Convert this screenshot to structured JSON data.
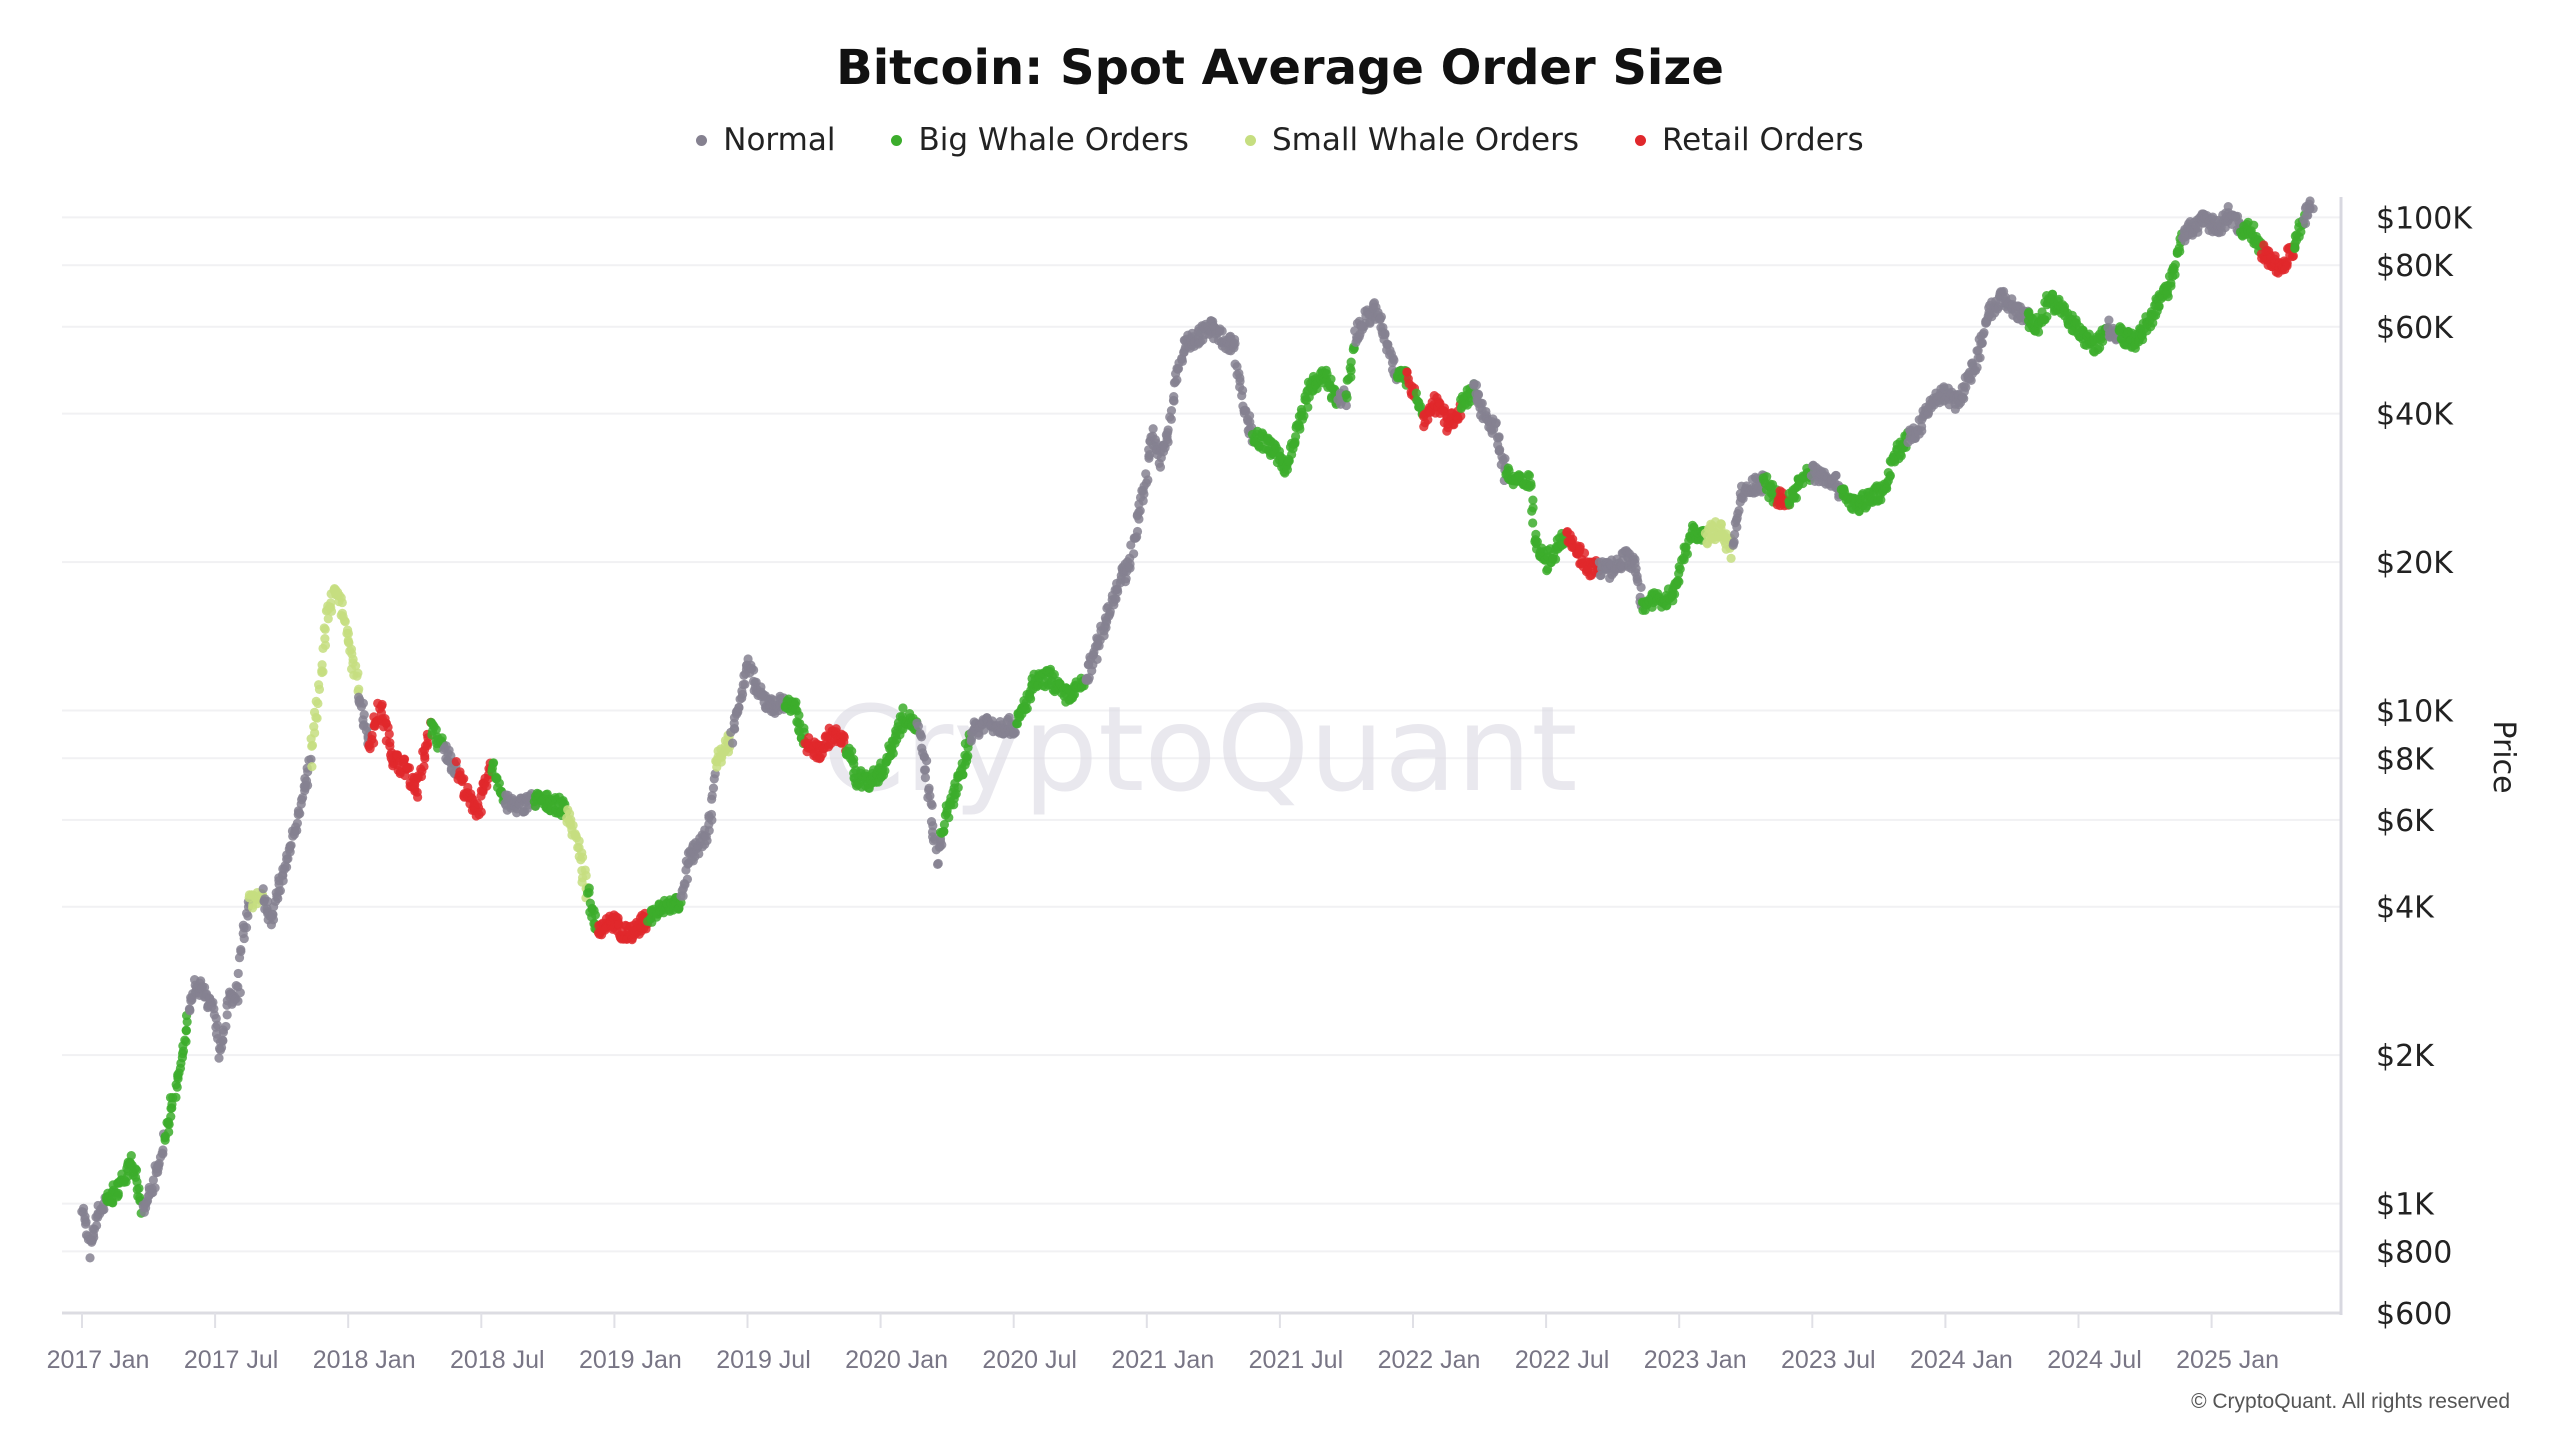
{
  "chart_data": {
    "type": "scatter",
    "title": "Bitcoin: Spot Average Order Size",
    "ylabel": "Price",
    "xlabel": "",
    "yscale": "log",
    "ylim": [
      600,
      110000
    ],
    "xlim": [
      2016.95,
      2025.48
    ],
    "grid": true,
    "legend_position": "top-center",
    "watermark": "CryptoQuant",
    "categories": {
      "n": {
        "name": "Normal",
        "color": "#858190"
      },
      "b": {
        "name": "Big Whale Orders",
        "color": "#3cad2c"
      },
      "s": {
        "name": "Small Whale Orders",
        "color": "#c6de80"
      },
      "r": {
        "name": "Retail Orders",
        "color": "#e0282c"
      }
    },
    "legend": [
      "Normal",
      "Big Whale Orders",
      "Small Whale Orders",
      "Retail Orders"
    ],
    "y_ticks": [
      {
        "value": 100000,
        "label": "$100K"
      },
      {
        "value": 80000,
        "label": "$80K"
      },
      {
        "value": 60000,
        "label": "$60K"
      },
      {
        "value": 40000,
        "label": "$40K"
      },
      {
        "value": 20000,
        "label": "$20K"
      },
      {
        "value": 10000,
        "label": "$10K"
      },
      {
        "value": 8000,
        "label": "$8K"
      },
      {
        "value": 6000,
        "label": "$6K"
      },
      {
        "value": 4000,
        "label": "$4K"
      },
      {
        "value": 2000,
        "label": "$2K"
      },
      {
        "value": 1000,
        "label": "$1K"
      },
      {
        "value": 800,
        "label": "$800"
      },
      {
        "value": 600,
        "label": "$600"
      }
    ],
    "x_ticks": [
      {
        "value": 2017.0,
        "label": "2017 Jan"
      },
      {
        "value": 2017.5,
        "label": "2017 Jul"
      },
      {
        "value": 2018.0,
        "label": "2018 Jan"
      },
      {
        "value": 2018.5,
        "label": "2018 Jul"
      },
      {
        "value": 2019.0,
        "label": "2019 Jan"
      },
      {
        "value": 2019.5,
        "label": "2019 Jul"
      },
      {
        "value": 2020.0,
        "label": "2020 Jan"
      },
      {
        "value": 2020.5,
        "label": "2020 Jul"
      },
      {
        "value": 2021.0,
        "label": "2021 Jan"
      },
      {
        "value": 2021.5,
        "label": "2021 Jul"
      },
      {
        "value": 2022.0,
        "label": "2022 Jan"
      },
      {
        "value": 2022.5,
        "label": "2022 Jul"
      },
      {
        "value": 2023.0,
        "label": "2023 Jan"
      },
      {
        "value": 2023.5,
        "label": "2023 Jul"
      },
      {
        "value": 2024.0,
        "label": "2024 Jan"
      },
      {
        "value": 2024.5,
        "label": "2024 Jul"
      },
      {
        "value": 2025.0,
        "label": "2025 Jan"
      }
    ],
    "points": [
      [
        2017.0,
        1000,
        "n"
      ],
      [
        2017.03,
        800,
        "n"
      ],
      [
        2017.06,
        950,
        "n"
      ],
      [
        2017.09,
        1000,
        "b"
      ],
      [
        2017.15,
        1100,
        "b"
      ],
      [
        2017.18,
        1250,
        "b"
      ],
      [
        2017.23,
        950,
        "n"
      ],
      [
        2017.28,
        1150,
        "n"
      ],
      [
        2017.31,
        1350,
        "b"
      ],
      [
        2017.37,
        1900,
        "b"
      ],
      [
        2017.4,
        2400,
        "n"
      ],
      [
        2017.43,
        2800,
        "n"
      ],
      [
        2017.49,
        2500,
        "n"
      ],
      [
        2017.52,
        2000,
        "n"
      ],
      [
        2017.55,
        2600,
        "n"
      ],
      [
        2017.59,
        2700,
        "n"
      ],
      [
        2017.6,
        3400,
        "n"
      ],
      [
        2017.63,
        4100,
        "s"
      ],
      [
        2017.68,
        4200,
        "n"
      ],
      [
        2017.71,
        3800,
        "n"
      ],
      [
        2017.75,
        4500,
        "n"
      ],
      [
        2017.79,
        5400,
        "n"
      ],
      [
        2017.83,
        6800,
        "n"
      ],
      [
        2017.86,
        8000,
        "s"
      ],
      [
        2017.89,
        10800,
        "s"
      ],
      [
        2017.92,
        15500,
        "s"
      ],
      [
        2017.96,
        18000,
        "s"
      ],
      [
        2017.99,
        14500,
        "s"
      ],
      [
        2018.04,
        11000,
        "n"
      ],
      [
        2018.08,
        8500,
        "r"
      ],
      [
        2018.12,
        10200,
        "r"
      ],
      [
        2018.17,
        8000,
        "r"
      ],
      [
        2018.22,
        7600,
        "r"
      ],
      [
        2018.26,
        6900,
        "r"
      ],
      [
        2018.31,
        9300,
        "b"
      ],
      [
        2018.36,
        8300,
        "n"
      ],
      [
        2018.41,
        7600,
        "r"
      ],
      [
        2018.45,
        6600,
        "r"
      ],
      [
        2018.49,
        6300,
        "r"
      ],
      [
        2018.54,
        7800,
        "b"
      ],
      [
        2018.59,
        6500,
        "n"
      ],
      [
        2018.64,
        6400,
        "n"
      ],
      [
        2018.7,
        6600,
        "b"
      ],
      [
        2018.76,
        6500,
        "b"
      ],
      [
        2018.82,
        6300,
        "s"
      ],
      [
        2018.86,
        5400,
        "s"
      ],
      [
        2018.9,
        4200,
        "b"
      ],
      [
        2018.94,
        3600,
        "r"
      ],
      [
        2018.99,
        3800,
        "r"
      ],
      [
        2019.03,
        3500,
        "r"
      ],
      [
        2019.08,
        3600,
        "r"
      ],
      [
        2019.13,
        3800,
        "b"
      ],
      [
        2019.19,
        4000,
        "b"
      ],
      [
        2019.25,
        4100,
        "n"
      ],
      [
        2019.28,
        5000,
        "n"
      ],
      [
        2019.33,
        5400,
        "n"
      ],
      [
        2019.36,
        6000,
        "n"
      ],
      [
        2019.38,
        7800,
        "s"
      ],
      [
        2019.44,
        8800,
        "n"
      ],
      [
        2019.47,
        10500,
        "n"
      ],
      [
        2019.5,
        12400,
        "n"
      ],
      [
        2019.54,
        10800,
        "n"
      ],
      [
        2019.59,
        10200,
        "n"
      ],
      [
        2019.64,
        10400,
        "b"
      ],
      [
        2019.68,
        10000,
        "b"
      ],
      [
        2019.72,
        8600,
        "r"
      ],
      [
        2019.77,
        8200,
        "r"
      ],
      [
        2019.82,
        9000,
        "r"
      ],
      [
        2019.87,
        8500,
        "b"
      ],
      [
        2019.91,
        7300,
        "b"
      ],
      [
        2019.96,
        7200,
        "b"
      ],
      [
        2020.01,
        7600,
        "b"
      ],
      [
        2020.05,
        8700,
        "b"
      ],
      [
        2020.09,
        9800,
        "b"
      ],
      [
        2020.14,
        9200,
        "n"
      ],
      [
        2020.17,
        7500,
        "n"
      ],
      [
        2020.21,
        5000,
        "n"
      ],
      [
        2020.23,
        5600,
        "b"
      ],
      [
        2020.27,
        6700,
        "b"
      ],
      [
        2020.3,
        7300,
        "b"
      ],
      [
        2020.34,
        9000,
        "n"
      ],
      [
        2020.39,
        9500,
        "n"
      ],
      [
        2020.45,
        9300,
        "n"
      ],
      [
        2020.51,
        9300,
        "b"
      ],
      [
        2020.58,
        11400,
        "b"
      ],
      [
        2020.64,
        11700,
        "b"
      ],
      [
        2020.69,
        10700,
        "b"
      ],
      [
        2020.73,
        10900,
        "b"
      ],
      [
        2020.77,
        11500,
        "n"
      ],
      [
        2020.81,
        13200,
        "n"
      ],
      [
        2020.85,
        15600,
        "n"
      ],
      [
        2020.9,
        18500,
        "n"
      ],
      [
        2020.93,
        19300,
        "n"
      ],
      [
        2020.96,
        23500,
        "n"
      ],
      [
        2021.0,
        30500,
        "n"
      ],
      [
        2021.02,
        37000,
        "n"
      ],
      [
        2021.05,
        32000,
        "n"
      ],
      [
        2021.08,
        36000,
        "n"
      ],
      [
        2021.11,
        47000,
        "n"
      ],
      [
        2021.14,
        55000,
        "n"
      ],
      [
        2021.19,
        57000,
        "n"
      ],
      [
        2021.24,
        60000,
        "n"
      ],
      [
        2021.28,
        57000,
        "n"
      ],
      [
        2021.33,
        55000,
        "n"
      ],
      [
        2021.36,
        42000,
        "n"
      ],
      [
        2021.4,
        36000,
        "b"
      ],
      [
        2021.44,
        35000,
        "b"
      ],
      [
        2021.49,
        33000,
        "b"
      ],
      [
        2021.53,
        31000,
        "b"
      ],
      [
        2021.57,
        38000,
        "b"
      ],
      [
        2021.62,
        46000,
        "b"
      ],
      [
        2021.67,
        47500,
        "b"
      ],
      [
        2021.72,
        42000,
        "n"
      ],
      [
        2021.75,
        43500,
        "b"
      ],
      [
        2021.78,
        57000,
        "n"
      ],
      [
        2021.82,
        62000,
        "n"
      ],
      [
        2021.86,
        65000,
        "n"
      ],
      [
        2021.9,
        56000,
        "n"
      ],
      [
        2021.94,
        48000,
        "b"
      ],
      [
        2021.98,
        47000,
        "r"
      ],
      [
        2022.01,
        44000,
        "b"
      ],
      [
        2022.04,
        39000,
        "r"
      ],
      [
        2022.09,
        42500,
        "r"
      ],
      [
        2022.13,
        38000,
        "r"
      ],
      [
        2022.18,
        41000,
        "b"
      ],
      [
        2022.23,
        45000,
        "n"
      ],
      [
        2022.27,
        40000,
        "n"
      ],
      [
        2022.31,
        37000,
        "n"
      ],
      [
        2022.35,
        30000,
        "b"
      ],
      [
        2022.39,
        29000,
        "b"
      ],
      [
        2022.44,
        29500,
        "b"
      ],
      [
        2022.46,
        22000,
        "b"
      ],
      [
        2022.5,
        20000,
        "b"
      ],
      [
        2022.53,
        21000,
        "b"
      ],
      [
        2022.58,
        23000,
        "r"
      ],
      [
        2022.62,
        21000,
        "r"
      ],
      [
        2022.66,
        19500,
        "r"
      ],
      [
        2022.7,
        19500,
        "n"
      ],
      [
        2022.74,
        19200,
        "n"
      ],
      [
        2022.8,
        20500,
        "n"
      ],
      [
        2022.83,
        19800,
        "n"
      ],
      [
        2022.86,
        16500,
        "b"
      ],
      [
        2022.92,
        16700,
        "b"
      ],
      [
        2022.98,
        17200,
        "b"
      ],
      [
        2023.04,
        23000,
        "b"
      ],
      [
        2023.1,
        22500,
        "s"
      ],
      [
        2023.15,
        23500,
        "s"
      ],
      [
        2023.2,
        21000,
        "n"
      ],
      [
        2023.23,
        27500,
        "n"
      ],
      [
        2023.28,
        28500,
        "n"
      ],
      [
        2023.32,
        29000,
        "b"
      ],
      [
        2023.37,
        27000,
        "r"
      ],
      [
        2023.41,
        26500,
        "b"
      ],
      [
        2023.46,
        29500,
        "b"
      ],
      [
        2023.5,
        30500,
        "n"
      ],
      [
        2023.57,
        29500,
        "n"
      ],
      [
        2023.61,
        28000,
        "b"
      ],
      [
        2023.66,
        26000,
        "b"
      ],
      [
        2023.72,
        27000,
        "b"
      ],
      [
        2023.77,
        28000,
        "b"
      ],
      [
        2023.81,
        33000,
        "b"
      ],
      [
        2023.86,
        35500,
        "n"
      ],
      [
        2023.91,
        38000,
        "n"
      ],
      [
        2023.96,
        43000,
        "n"
      ],
      [
        2024.0,
        44000,
        "n"
      ],
      [
        2024.04,
        42000,
        "n"
      ],
      [
        2024.08,
        46000,
        "n"
      ],
      [
        2024.12,
        52000,
        "n"
      ],
      [
        2024.16,
        63000,
        "n"
      ],
      [
        2024.21,
        69000,
        "n"
      ],
      [
        2024.26,
        65000,
        "n"
      ],
      [
        2024.31,
        62000,
        "b"
      ],
      [
        2024.35,
        60000,
        "b"
      ],
      [
        2024.39,
        68000,
        "b"
      ],
      [
        2024.43,
        66000,
        "b"
      ],
      [
        2024.47,
        62000,
        "b"
      ],
      [
        2024.52,
        57000,
        "b"
      ],
      [
        2024.57,
        55000,
        "b"
      ],
      [
        2024.61,
        60000,
        "n"
      ],
      [
        2024.65,
        58000,
        "b"
      ],
      [
        2024.71,
        56000,
        "b"
      ],
      [
        2024.76,
        61000,
        "b"
      ],
      [
        2024.8,
        67000,
        "b"
      ],
      [
        2024.83,
        71000,
        "b"
      ],
      [
        2024.86,
        79000,
        "b"
      ],
      [
        2024.89,
        92000,
        "n"
      ],
      [
        2024.94,
        96000,
        "n"
      ],
      [
        2024.98,
        99000,
        "n"
      ],
      [
        2025.03,
        95000,
        "n"
      ],
      [
        2025.06,
        102000,
        "n"
      ],
      [
        2025.11,
        95000,
        "b"
      ],
      [
        2025.15,
        94000,
        "b"
      ],
      [
        2025.19,
        85000,
        "r"
      ],
      [
        2025.23,
        81000,
        "r"
      ],
      [
        2025.27,
        79000,
        "r"
      ],
      [
        2025.31,
        88000,
        "b"
      ],
      [
        2025.35,
        100000,
        "n"
      ],
      [
        2025.38,
        106000,
        "n"
      ]
    ]
  },
  "footer": {
    "copyright": "© CryptoQuant. All rights reserved"
  }
}
